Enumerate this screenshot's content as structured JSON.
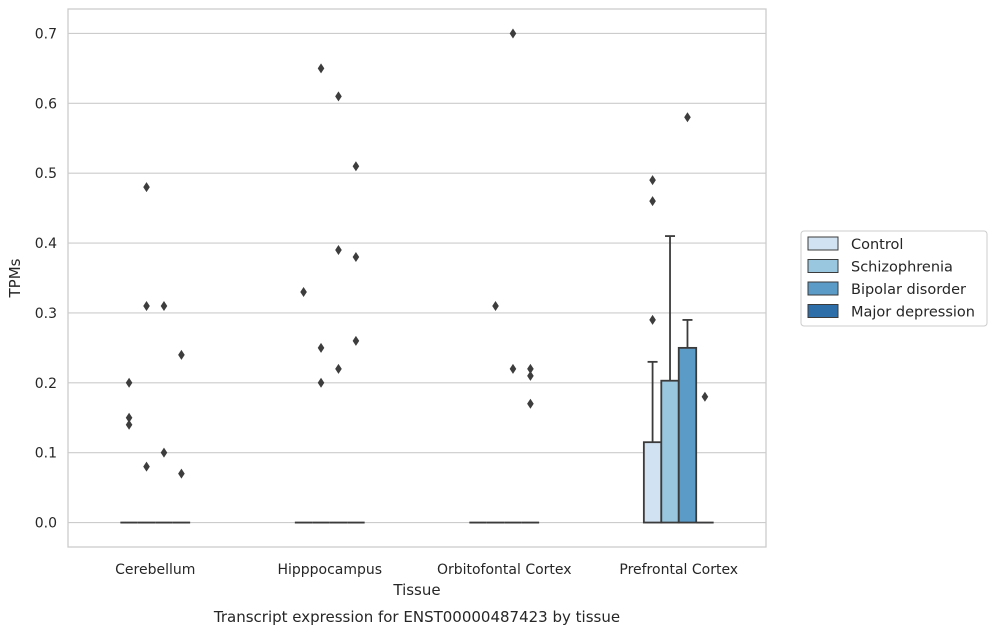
{
  "chart_data": {
    "type": "bar",
    "caption": "Transcript expression for ENST00000487423 by tissue",
    "xlabel": "Tissue",
    "ylabel": "TPMs",
    "ylim": [
      -0.035,
      0.735
    ],
    "yticks": [
      0.0,
      0.1,
      0.2,
      0.3,
      0.4,
      0.5,
      0.6,
      0.7
    ],
    "ytick_labels": [
      "0.0",
      "0.1",
      "0.2",
      "0.3",
      "0.4",
      "0.5",
      "0.6",
      "0.7"
    ],
    "grid": "horizontal",
    "legend_position": "right",
    "categories": [
      "Cerebellum",
      "Hipppocampus",
      "Orbitofontal Cortex",
      "Prefrontal Cortex"
    ],
    "series": [
      {
        "name": "Control",
        "color": "#d1e2f2",
        "values": [
          0.0,
          0.0,
          0.0,
          0.115
        ],
        "error_upper": [
          0.0,
          0.0,
          0.0,
          0.23
        ],
        "outliers": [
          [
            0.2,
            0.15,
            0.14
          ],
          [
            0.33
          ],
          [],
          [
            0.49,
            0.46,
            0.29
          ]
        ]
      },
      {
        "name": "Schizophrenia",
        "color": "#9ac7e0",
        "values": [
          0.0,
          0.0,
          0.0,
          0.203
        ],
        "error_upper": [
          0.0,
          0.0,
          0.0,
          0.41
        ],
        "outliers": [
          [
            0.48,
            0.31,
            0.08
          ],
          [
            0.65,
            0.25,
            0.2
          ],
          [
            0.31
          ],
          []
        ]
      },
      {
        "name": "Bipolar disorder",
        "color": "#5a9bc8",
        "values": [
          0.0,
          0.0,
          0.0,
          0.25
        ],
        "error_upper": [
          0.0,
          0.0,
          0.0,
          0.29
        ],
        "outliers": [
          [
            0.31,
            0.1
          ],
          [
            0.61,
            0.39,
            0.22
          ],
          [
            0.7,
            0.22
          ],
          [
            0.58
          ]
        ]
      },
      {
        "name": "Major depression",
        "color": "#2d6da8",
        "values": [
          0.0,
          0.0,
          0.0,
          0.0
        ],
        "error_upper": [
          0.0,
          0.0,
          0.0,
          0.0
        ],
        "outliers": [
          [
            0.24,
            0.07
          ],
          [
            0.51,
            0.38,
            0.26
          ],
          [
            0.22,
            0.21,
            0.17
          ],
          [
            0.18
          ]
        ]
      }
    ]
  }
}
